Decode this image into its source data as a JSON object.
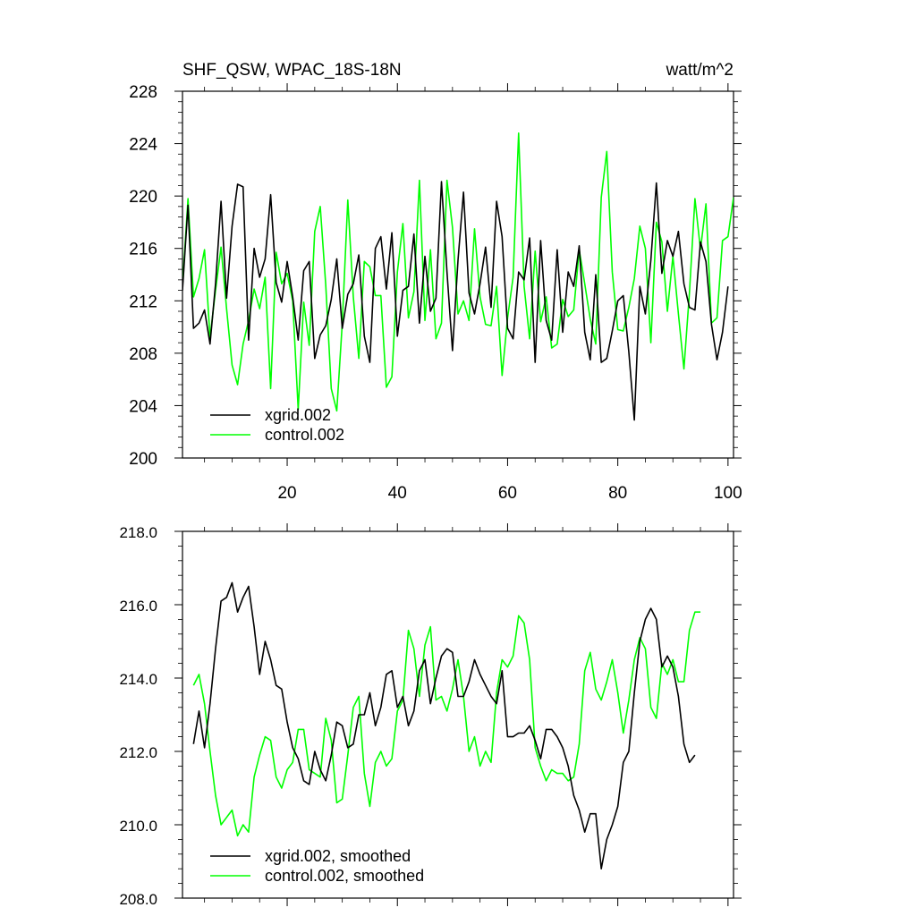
{
  "chart_data": [
    {
      "type": "line",
      "title": "SHF_QSW, WPAC_18S-18N",
      "units": "watt/m^2",
      "xlabel": "",
      "ylabel": "",
      "xlim": [
        1,
        101
      ],
      "ylim": [
        200,
        228
      ],
      "x_start": 1,
      "xticks": [
        20,
        40,
        60,
        80,
        100
      ],
      "xtick_labels": [
        "20",
        "40",
        "60",
        "80",
        "100"
      ],
      "yticks": [
        200,
        204,
        208,
        212,
        216,
        220,
        224,
        228
      ],
      "ytick_labels": [
        "200",
        "204",
        "208",
        "212",
        "216",
        "220",
        "224",
        "228"
      ],
      "legend_position": "bottom-left",
      "series": [
        {
          "name": "xgrid.002",
          "color": "#000000",
          "values": [
            212.8,
            219.3,
            209.9,
            210.3,
            211.3,
            208.7,
            213.3,
            219.6,
            212.2,
            217.7,
            220.9,
            220.7,
            209.0,
            216.0,
            213.8,
            215.2,
            220.1,
            213.4,
            211.9,
            215.0,
            212.3,
            209.0,
            214.3,
            215.0,
            207.6,
            209.4,
            210.1,
            212.1,
            215.2,
            209.9,
            212.5,
            213.3,
            215.5,
            209.3,
            207.3,
            216.0,
            216.9,
            212.9,
            217.2,
            209.3,
            212.8,
            213.1,
            217.1,
            210.3,
            215.4,
            211.2,
            212.2,
            221.1,
            214.2,
            208.2,
            215.1,
            220.3,
            212.6,
            211.0,
            213.3,
            216.1,
            211.5,
            219.6,
            216.9,
            209.9,
            209.1,
            214.2,
            213.6,
            216.8,
            207.3,
            216.6,
            210.5,
            209.0,
            215.9,
            209.6,
            214.2,
            213.1,
            216.2,
            209.6,
            207.5,
            214.0,
            207.3,
            207.6,
            209.7,
            212.0,
            212.4,
            208.1,
            202.9,
            213.1,
            211.0,
            215.1,
            221.0,
            214.1,
            216.6,
            215.4,
            217.3,
            213.3,
            211.5,
            211.3,
            216.5,
            215.0,
            210.2,
            207.5,
            209.6,
            213.1
          ]
        },
        {
          "name": "control.002",
          "color": "#00ff00",
          "values": [
            213.1,
            219.8,
            212.3,
            213.7,
            215.9,
            209.2,
            212.8,
            216.1,
            211.4,
            207.1,
            205.6,
            208.7,
            210.5,
            212.9,
            211.4,
            213.8,
            205.3,
            215.7,
            213.3,
            214.1,
            212.0,
            203.7,
            211.9,
            208.6,
            217.3,
            219.2,
            213.2,
            205.3,
            203.6,
            210.3,
            219.7,
            212.3,
            207.6,
            215.0,
            214.6,
            212.4,
            212.4,
            205.4,
            206.2,
            214.2,
            217.9,
            210.7,
            212.7,
            221.2,
            210.5,
            215.9,
            209.1,
            210.3,
            221.2,
            217.6,
            211.0,
            212.0,
            210.5,
            217.5,
            212.3,
            210.2,
            210.1,
            213.1,
            206.3,
            210.7,
            213.8,
            224.8,
            213.1,
            209.1,
            215.8,
            210.4,
            212.3,
            208.4,
            208.7,
            212.1,
            210.8,
            211.3,
            215.9,
            213.3,
            210.6,
            208.7,
            219.9,
            223.4,
            214.2,
            209.8,
            209.7,
            211.5,
            213.7,
            217.7,
            216.0,
            208.8,
            218.0,
            216.5,
            211.2,
            215.4,
            211.0,
            206.8,
            212.6,
            219.8,
            215.9,
            219.4,
            210.3,
            210.7,
            216.6,
            216.9,
            219.9
          ]
        }
      ]
    },
    {
      "type": "line",
      "title": "",
      "xlabel": "",
      "ylabel": "",
      "xlim": [
        1,
        101
      ],
      "ylim": [
        208.0,
        218.0
      ],
      "x_start": 3,
      "xticks": [
        20,
        40,
        60,
        80,
        100
      ],
      "xtick_labels": [],
      "yticks": [
        208.0,
        210.0,
        212.0,
        214.0,
        216.0,
        218.0
      ],
      "ytick_labels": [
        "208.0",
        "210.0",
        "212.0",
        "214.0",
        "216.0",
        "218.0"
      ],
      "legend_position": "bottom-left",
      "series": [
        {
          "name": "xgrid.002, smoothed",
          "color": "#000000",
          "values": [
            212.2,
            213.1,
            212.1,
            213.3,
            214.8,
            216.1,
            216.2,
            216.6,
            215.8,
            216.2,
            216.5,
            215.4,
            214.1,
            215.0,
            214.5,
            213.8,
            213.7,
            212.8,
            212.1,
            211.8,
            211.2,
            211.1,
            212.0,
            211.5,
            211.2,
            211.9,
            212.8,
            212.7,
            212.1,
            212.2,
            213.0,
            213.0,
            213.6,
            212.7,
            213.2,
            214.1,
            214.2,
            213.2,
            213.5,
            212.7,
            213.1,
            214.2,
            214.5,
            213.3,
            214.0,
            214.6,
            214.8,
            214.7,
            213.5,
            213.5,
            213.9,
            214.5,
            214.1,
            213.8,
            213.5,
            213.3,
            214.2,
            212.4,
            212.4,
            212.5,
            212.5,
            212.7,
            212.3,
            211.8,
            212.6,
            212.6,
            212.4,
            212.1,
            211.6,
            210.8,
            210.4,
            209.8,
            210.3,
            210.3,
            208.8,
            209.6,
            210.0,
            210.5,
            211.7,
            212.0,
            213.6,
            215.0,
            215.6,
            215.9,
            215.6,
            214.3,
            214.6,
            214.3,
            213.5,
            212.2,
            211.7,
            211.9
          ]
        },
        {
          "name": "control.002, smoothed",
          "color": "#00ff00",
          "values": [
            213.8,
            214.1,
            213.3,
            212.0,
            210.8,
            210.0,
            210.2,
            210.4,
            209.7,
            210.0,
            209.8,
            211.3,
            211.9,
            212.4,
            212.3,
            211.3,
            211.0,
            211.5,
            211.7,
            212.6,
            212.6,
            211.5,
            211.4,
            211.3,
            212.9,
            212.3,
            210.6,
            210.7,
            211.9,
            213.2,
            213.5,
            211.4,
            210.5,
            211.7,
            212.0,
            211.6,
            211.8,
            213.1,
            213.4,
            215.3,
            214.8,
            213.5,
            214.9,
            215.4,
            213.4,
            213.5,
            213.1,
            213.7,
            214.5,
            213.5,
            212.0,
            212.4,
            211.6,
            212.0,
            211.7,
            213.6,
            214.5,
            214.3,
            214.6,
            215.7,
            215.5,
            214.5,
            212.1,
            211.6,
            211.2,
            211.5,
            211.4,
            211.4,
            211.2,
            211.3,
            212.2,
            214.2,
            214.7,
            213.7,
            213.4,
            213.9,
            214.5,
            213.6,
            212.5,
            213.4,
            214.5,
            215.1,
            214.8,
            213.2,
            212.9,
            214.4,
            214.1,
            214.5,
            213.9,
            213.9,
            215.3,
            215.8,
            215.8
          ]
        }
      ]
    }
  ]
}
